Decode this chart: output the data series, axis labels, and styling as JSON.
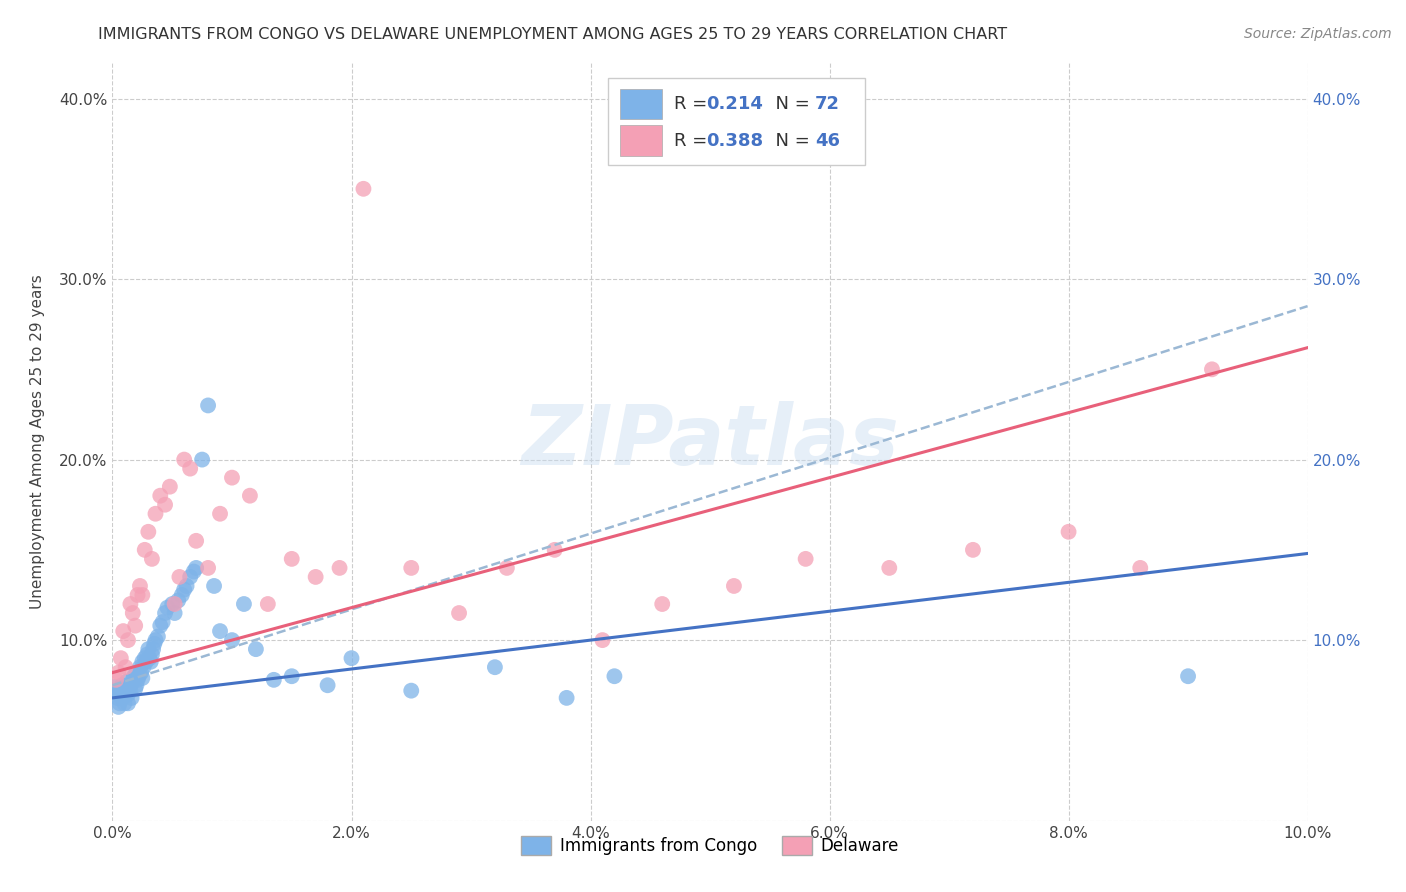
{
  "title": "IMMIGRANTS FROM CONGO VS DELAWARE UNEMPLOYMENT AMONG AGES 25 TO 29 YEARS CORRELATION CHART",
  "source": "Source: ZipAtlas.com",
  "ylabel": "Unemployment Among Ages 25 to 29 years",
  "xlim": [
    0.0,
    0.1
  ],
  "ylim": [
    0.0,
    0.42
  ],
  "x_ticks": [
    0.0,
    0.02,
    0.04,
    0.06,
    0.08,
    0.1
  ],
  "y_ticks": [
    0.0,
    0.1,
    0.2,
    0.3,
    0.4
  ],
  "blue_color": "#7EB3E8",
  "pink_color": "#F4A0B5",
  "blue_line_color": "#4472C4",
  "pink_line_color": "#E8607A",
  "dashed_line_color": "#9BB8D4",
  "R_blue": 0.214,
  "N_blue": 72,
  "R_pink": 0.388,
  "N_pink": 46,
  "watermark_text": "ZIPatlas",
  "blue_intercept": 0.068,
  "blue_slope": 0.8,
  "pink_intercept": 0.082,
  "pink_slope": 1.8,
  "dash_intercept": 0.075,
  "dash_slope": 2.1,
  "blue_x": [
    0.0002,
    0.0003,
    0.0004,
    0.0005,
    0.0005,
    0.0006,
    0.0007,
    0.0008,
    0.0008,
    0.0009,
    0.001,
    0.001,
    0.0011,
    0.0012,
    0.0013,
    0.0013,
    0.0014,
    0.0015,
    0.0015,
    0.0016,
    0.0017,
    0.0018,
    0.0019,
    0.002,
    0.002,
    0.0021,
    0.0022,
    0.0023,
    0.0024,
    0.0025,
    0.0025,
    0.0026,
    0.0027,
    0.0028,
    0.0029,
    0.003,
    0.0031,
    0.0032,
    0.0033,
    0.0034,
    0.0035,
    0.0036,
    0.0038,
    0.004,
    0.0042,
    0.0044,
    0.0046,
    0.005,
    0.0052,
    0.0055,
    0.0058,
    0.006,
    0.0062,
    0.0065,
    0.0068,
    0.007,
    0.0075,
    0.008,
    0.0085,
    0.009,
    0.01,
    0.011,
    0.012,
    0.0135,
    0.015,
    0.018,
    0.02,
    0.025,
    0.032,
    0.038,
    0.042,
    0.09
  ],
  "blue_y": [
    0.074,
    0.072,
    0.068,
    0.063,
    0.07,
    0.065,
    0.072,
    0.075,
    0.068,
    0.071,
    0.065,
    0.069,
    0.073,
    0.077,
    0.065,
    0.07,
    0.074,
    0.072,
    0.075,
    0.068,
    0.078,
    0.08,
    0.073,
    0.075,
    0.082,
    0.078,
    0.08,
    0.085,
    0.082,
    0.079,
    0.088,
    0.085,
    0.09,
    0.088,
    0.092,
    0.095,
    0.09,
    0.088,
    0.092,
    0.095,
    0.098,
    0.1,
    0.102,
    0.108,
    0.11,
    0.115,
    0.118,
    0.12,
    0.115,
    0.122,
    0.125,
    0.128,
    0.13,
    0.135,
    0.138,
    0.14,
    0.2,
    0.23,
    0.13,
    0.105,
    0.1,
    0.12,
    0.095,
    0.078,
    0.08,
    0.075,
    0.09,
    0.072,
    0.085,
    0.068,
    0.08,
    0.08
  ],
  "pink_x": [
    0.0003,
    0.0005,
    0.0007,
    0.0009,
    0.0011,
    0.0013,
    0.0015,
    0.0017,
    0.0019,
    0.0021,
    0.0023,
    0.0025,
    0.0027,
    0.003,
    0.0033,
    0.0036,
    0.004,
    0.0044,
    0.0048,
    0.0052,
    0.0056,
    0.006,
    0.0065,
    0.007,
    0.008,
    0.009,
    0.01,
    0.0115,
    0.013,
    0.015,
    0.017,
    0.019,
    0.021,
    0.025,
    0.029,
    0.033,
    0.037,
    0.041,
    0.046,
    0.052,
    0.058,
    0.065,
    0.072,
    0.08,
    0.086,
    0.092
  ],
  "pink_y": [
    0.078,
    0.082,
    0.09,
    0.105,
    0.085,
    0.1,
    0.12,
    0.115,
    0.108,
    0.125,
    0.13,
    0.125,
    0.15,
    0.16,
    0.145,
    0.17,
    0.18,
    0.175,
    0.185,
    0.12,
    0.135,
    0.2,
    0.195,
    0.155,
    0.14,
    0.17,
    0.19,
    0.18,
    0.12,
    0.145,
    0.135,
    0.14,
    0.35,
    0.14,
    0.115,
    0.14,
    0.15,
    0.1,
    0.12,
    0.13,
    0.145,
    0.14,
    0.15,
    0.16,
    0.14,
    0.25
  ]
}
